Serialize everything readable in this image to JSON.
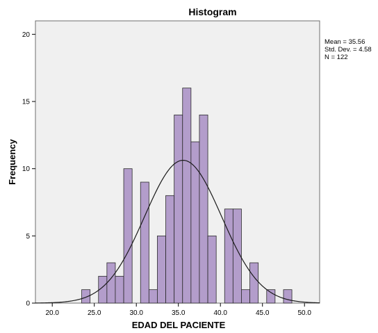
{
  "chart_data": {
    "type": "bar",
    "title": "Histogram",
    "xlabel": "EDAD DEL PACIENTE",
    "ylabel": "Frequency",
    "xlim": [
      18.0,
      51.8
    ],
    "ylim": [
      0,
      21
    ],
    "x_ticks": [
      "20.0",
      "25.0",
      "30.0",
      "35.0",
      "40.0",
      "45.0",
      "50.0"
    ],
    "x_tick_values": [
      20,
      25,
      30,
      35,
      40,
      45,
      50
    ],
    "y_ticks": [
      "0",
      "5",
      "10",
      "15",
      "20"
    ],
    "y_tick_values": [
      0,
      5,
      10,
      15,
      20
    ],
    "bin_width": 1,
    "bins": [
      {
        "start": 23.5,
        "count": 1
      },
      {
        "start": 25.5,
        "count": 2
      },
      {
        "start": 26.5,
        "count": 3
      },
      {
        "start": 27.5,
        "count": 2
      },
      {
        "start": 28.5,
        "count": 10
      },
      {
        "start": 30.5,
        "count": 9
      },
      {
        "start": 31.5,
        "count": 1
      },
      {
        "start": 32.5,
        "count": 5
      },
      {
        "start": 33.5,
        "count": 8
      },
      {
        "start": 34.5,
        "count": 14
      },
      {
        "start": 35.5,
        "count": 16
      },
      {
        "start": 36.5,
        "count": 12
      },
      {
        "start": 37.5,
        "count": 14
      },
      {
        "start": 38.5,
        "count": 5
      },
      {
        "start": 40.5,
        "count": 7
      },
      {
        "start": 41.5,
        "count": 7
      },
      {
        "start": 42.5,
        "count": 1
      },
      {
        "start": 43.5,
        "count": 3
      },
      {
        "start": 45.5,
        "count": 1
      },
      {
        "start": 47.5,
        "count": 1
      }
    ],
    "normal_curve": {
      "mean": 35.56,
      "std": 4.58,
      "n": 122
    },
    "bar_color": "#b39dcb",
    "bar_edge_color": "#2a2a2a",
    "plot_background": "#f0f0f0",
    "curve_color": "#1a1a1a",
    "grid": false,
    "legend_position": "top-right",
    "stats": {
      "mean": "Mean = 35.56",
      "std": "Std. Dev. = 4.58",
      "n": "N = 122"
    }
  }
}
